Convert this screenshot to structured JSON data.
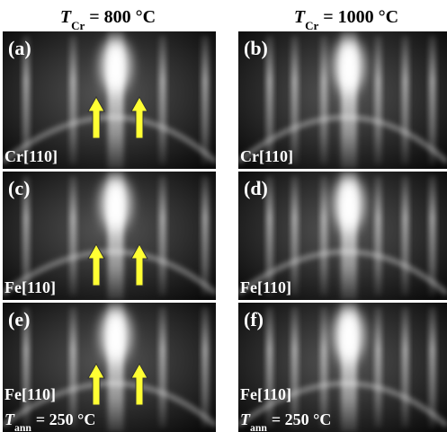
{
  "headers": [
    {
      "symbol": "T",
      "subscript": "Cr",
      "text": "= 800 °C"
    },
    {
      "symbol": "T",
      "subscript": "Cr",
      "text": "= 1000 °C"
    }
  ],
  "panels": [
    {
      "label": "(a)",
      "direction": "Cr[110]"
    },
    {
      "label": "(b)",
      "direction": "Cr[110]"
    },
    {
      "label": "(c)",
      "direction": "Fe[110]"
    },
    {
      "label": "(d)",
      "direction": "Fe[110]"
    },
    {
      "label": "(e)",
      "direction": "Fe[110]",
      "annotation": {
        "symbol": "T",
        "subscript": "ann",
        "text": "= 250 °C"
      }
    },
    {
      "label": "(f)",
      "direction": "Fe[110]",
      "annotation": {
        "symbol": "T",
        "subscript": "ann",
        "text": "= 250 °C"
      }
    }
  ]
}
